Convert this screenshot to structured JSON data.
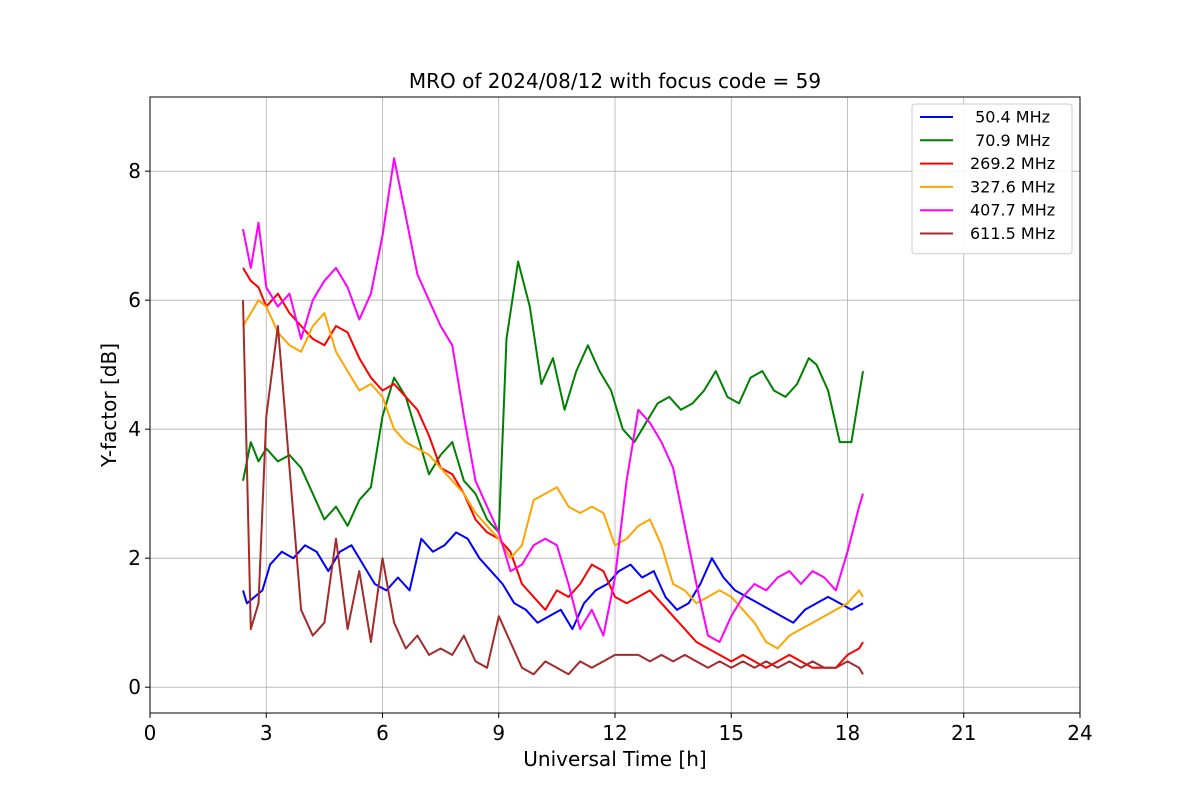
{
  "chart_data": {
    "type": "line",
    "title": "MRO of 2024/08/12 with focus code = 59",
    "xlabel": "Universal Time [h]",
    "ylabel": "Y-factor [dB]",
    "xlim": [
      0,
      24
    ],
    "ylim": [
      -0.4,
      9.15
    ],
    "xticks": [
      0,
      3,
      6,
      9,
      12,
      15,
      18,
      21,
      24
    ],
    "yticks": [
      0,
      2,
      4,
      6,
      8
    ],
    "grid": true,
    "legend_position": "top-right",
    "series": [
      {
        "name": " 50.4 MHz",
        "color": "#0000ff",
        "x": [
          2.4,
          2.5,
          2.7,
          2.9,
          3.1,
          3.4,
          3.7,
          4.0,
          4.3,
          4.6,
          4.9,
          5.2,
          5.5,
          5.8,
          6.1,
          6.4,
          6.7,
          7.0,
          7.3,
          7.6,
          7.9,
          8.2,
          8.5,
          8.8,
          9.1,
          9.4,
          9.7,
          10.0,
          10.3,
          10.6,
          10.9,
          11.2,
          11.5,
          11.8,
          12.1,
          12.4,
          12.7,
          13.0,
          13.3,
          13.6,
          13.9,
          14.2,
          14.5,
          14.8,
          15.1,
          15.4,
          15.7,
          16.0,
          16.3,
          16.6,
          16.9,
          17.2,
          17.5,
          17.8,
          18.1,
          18.4
        ],
        "y": [
          1.5,
          1.3,
          1.4,
          1.5,
          1.9,
          2.1,
          2.0,
          2.2,
          2.1,
          1.8,
          2.1,
          2.2,
          1.9,
          1.6,
          1.5,
          1.7,
          1.5,
          2.3,
          2.1,
          2.2,
          2.4,
          2.3,
          2.0,
          1.8,
          1.6,
          1.3,
          1.2,
          1.0,
          1.1,
          1.2,
          0.9,
          1.3,
          1.5,
          1.6,
          1.8,
          1.9,
          1.7,
          1.8,
          1.4,
          1.2,
          1.3,
          1.6,
          2.0,
          1.7,
          1.5,
          1.4,
          1.3,
          1.2,
          1.1,
          1.0,
          1.2,
          1.3,
          1.4,
          1.3,
          1.2,
          1.3
        ]
      },
      {
        "name": " 70.9 MHz",
        "color": "#008000",
        "x": [
          2.4,
          2.6,
          2.8,
          3.0,
          3.3,
          3.6,
          3.9,
          4.2,
          4.5,
          4.8,
          5.1,
          5.4,
          5.7,
          6.0,
          6.3,
          6.6,
          6.9,
          7.2,
          7.5,
          7.8,
          8.1,
          8.4,
          8.7,
          9.0,
          9.2,
          9.5,
          9.8,
          10.1,
          10.4,
          10.7,
          11.0,
          11.3,
          11.6,
          11.9,
          12.2,
          12.5,
          12.8,
          13.1,
          13.4,
          13.7,
          14.0,
          14.3,
          14.6,
          14.9,
          15.2,
          15.5,
          15.8,
          16.1,
          16.4,
          16.7,
          17.0,
          17.2,
          17.5,
          17.8,
          18.1,
          18.4
        ],
        "y": [
          3.2,
          3.8,
          3.5,
          3.7,
          3.5,
          3.6,
          3.4,
          3.0,
          2.6,
          2.8,
          2.5,
          2.9,
          3.1,
          4.2,
          4.8,
          4.5,
          3.9,
          3.3,
          3.6,
          3.8,
          3.2,
          3.0,
          2.6,
          2.4,
          5.4,
          6.6,
          5.9,
          4.7,
          5.1,
          4.3,
          4.9,
          5.3,
          4.9,
          4.6,
          4.0,
          3.8,
          4.1,
          4.4,
          4.5,
          4.3,
          4.4,
          4.6,
          4.9,
          4.5,
          4.4,
          4.8,
          4.9,
          4.6,
          4.5,
          4.7,
          5.1,
          5.0,
          4.6,
          3.8,
          3.8,
          4.9
        ]
      },
      {
        "name": "269.2 MHz",
        "color": "#ff0000",
        "x": [
          2.4,
          2.6,
          2.8,
          3.0,
          3.3,
          3.6,
          3.9,
          4.2,
          4.5,
          4.8,
          5.1,
          5.4,
          5.7,
          6.0,
          6.3,
          6.6,
          6.9,
          7.2,
          7.5,
          7.8,
          8.1,
          8.4,
          8.7,
          9.0,
          9.3,
          9.6,
          9.9,
          10.2,
          10.5,
          10.8,
          11.1,
          11.4,
          11.7,
          12.0,
          12.3,
          12.6,
          12.9,
          13.2,
          13.5,
          13.8,
          14.1,
          14.4,
          14.7,
          15.0,
          15.3,
          15.6,
          15.9,
          16.2,
          16.5,
          16.8,
          17.1,
          17.4,
          17.7,
          18.0,
          18.3,
          18.4
        ],
        "y": [
          6.5,
          6.3,
          6.2,
          5.9,
          6.1,
          5.8,
          5.6,
          5.4,
          5.3,
          5.6,
          5.5,
          5.1,
          4.8,
          4.6,
          4.7,
          4.5,
          4.3,
          3.9,
          3.4,
          3.3,
          3.0,
          2.6,
          2.4,
          2.3,
          2.1,
          1.6,
          1.4,
          1.2,
          1.5,
          1.4,
          1.6,
          1.9,
          1.8,
          1.4,
          1.3,
          1.4,
          1.5,
          1.3,
          1.1,
          0.9,
          0.7,
          0.6,
          0.5,
          0.4,
          0.5,
          0.4,
          0.3,
          0.4,
          0.5,
          0.4,
          0.3,
          0.3,
          0.3,
          0.5,
          0.6,
          0.7
        ]
      },
      {
        "name": "327.6 MHz",
        "color": "#ffa500",
        "x": [
          2.4,
          2.6,
          2.8,
          3.0,
          3.3,
          3.6,
          3.9,
          4.2,
          4.5,
          4.8,
          5.1,
          5.4,
          5.7,
          6.0,
          6.3,
          6.6,
          6.9,
          7.2,
          7.5,
          7.8,
          8.1,
          8.4,
          8.7,
          9.0,
          9.3,
          9.6,
          9.9,
          10.2,
          10.5,
          10.8,
          11.1,
          11.4,
          11.7,
          12.0,
          12.3,
          12.6,
          12.9,
          13.2,
          13.5,
          13.8,
          14.1,
          14.4,
          14.7,
          15.0,
          15.3,
          15.6,
          15.9,
          16.2,
          16.5,
          16.8,
          17.1,
          17.4,
          17.7,
          18.0,
          18.3,
          18.4
        ],
        "y": [
          5.6,
          5.8,
          6.0,
          5.9,
          5.5,
          5.3,
          5.2,
          5.6,
          5.8,
          5.2,
          4.9,
          4.6,
          4.7,
          4.5,
          4.0,
          3.8,
          3.7,
          3.6,
          3.4,
          3.2,
          3.0,
          2.7,
          2.5,
          2.3,
          2.0,
          2.2,
          2.9,
          3.0,
          3.1,
          2.8,
          2.7,
          2.8,
          2.7,
          2.2,
          2.3,
          2.5,
          2.6,
          2.2,
          1.6,
          1.5,
          1.3,
          1.4,
          1.5,
          1.4,
          1.2,
          1.0,
          0.7,
          0.6,
          0.8,
          0.9,
          1.0,
          1.1,
          1.2,
          1.3,
          1.5,
          1.4
        ]
      },
      {
        "name": "407.7 MHz",
        "color": "#ff00ff",
        "x": [
          2.4,
          2.6,
          2.8,
          3.0,
          3.3,
          3.6,
          3.9,
          4.2,
          4.5,
          4.8,
          5.1,
          5.4,
          5.7,
          6.0,
          6.3,
          6.6,
          6.9,
          7.2,
          7.5,
          7.8,
          8.1,
          8.4,
          8.7,
          9.0,
          9.3,
          9.6,
          9.9,
          10.2,
          10.5,
          10.8,
          11.1,
          11.4,
          11.7,
          12.0,
          12.3,
          12.6,
          12.9,
          13.2,
          13.5,
          13.8,
          14.1,
          14.4,
          14.7,
          15.0,
          15.3,
          15.6,
          15.9,
          16.2,
          16.5,
          16.8,
          17.1,
          17.4,
          17.7,
          18.0,
          18.3,
          18.4
        ],
        "y": [
          7.1,
          6.5,
          7.2,
          6.2,
          5.9,
          6.1,
          5.4,
          6.0,
          6.3,
          6.5,
          6.2,
          5.7,
          6.1,
          7.0,
          8.2,
          7.3,
          6.4,
          6.0,
          5.6,
          5.3,
          4.2,
          3.2,
          2.8,
          2.4,
          1.8,
          1.9,
          2.2,
          2.3,
          2.2,
          1.6,
          0.9,
          1.2,
          0.8,
          1.7,
          3.2,
          4.3,
          4.1,
          3.8,
          3.4,
          2.5,
          1.6,
          0.8,
          0.7,
          1.1,
          1.4,
          1.6,
          1.5,
          1.7,
          1.8,
          1.6,
          1.8,
          1.7,
          1.5,
          2.1,
          2.8,
          3.0
        ]
      },
      {
        "name": "611.5 MHz",
        "color": "#a52a2a",
        "x": [
          2.4,
          2.6,
          2.8,
          3.0,
          3.3,
          3.6,
          3.9,
          4.2,
          4.5,
          4.8,
          5.1,
          5.4,
          5.7,
          6.0,
          6.3,
          6.6,
          6.9,
          7.2,
          7.5,
          7.8,
          8.1,
          8.4,
          8.7,
          9.0,
          9.3,
          9.6,
          9.9,
          10.2,
          10.5,
          10.8,
          11.1,
          11.4,
          11.7,
          12.0,
          12.3,
          12.6,
          12.9,
          13.2,
          13.5,
          13.8,
          14.1,
          14.4,
          14.7,
          15.0,
          15.3,
          15.6,
          15.9,
          16.2,
          16.5,
          16.8,
          17.1,
          17.4,
          17.7,
          18.0,
          18.3,
          18.4
        ],
        "y": [
          6.0,
          0.9,
          1.3,
          4.2,
          5.6,
          3.4,
          1.2,
          0.8,
          1.0,
          2.3,
          0.9,
          1.8,
          0.7,
          2.0,
          1.0,
          0.6,
          0.8,
          0.5,
          0.6,
          0.5,
          0.8,
          0.4,
          0.3,
          1.1,
          0.7,
          0.3,
          0.2,
          0.4,
          0.3,
          0.2,
          0.4,
          0.3,
          0.4,
          0.5,
          0.5,
          0.5,
          0.4,
          0.5,
          0.4,
          0.5,
          0.4,
          0.3,
          0.4,
          0.3,
          0.4,
          0.3,
          0.4,
          0.3,
          0.4,
          0.3,
          0.4,
          0.3,
          0.3,
          0.4,
          0.3,
          0.2
        ]
      }
    ]
  }
}
